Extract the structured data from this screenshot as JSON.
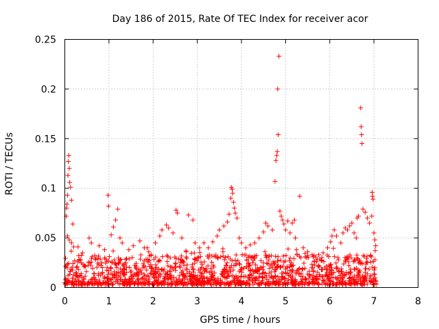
{
  "chart_data": {
    "type": "scatter",
    "title": "Day 186 of 2015, Rate Of TEC Index for receiver acor",
    "xlabel": "GPS time / hours",
    "ylabel": "ROTI / TECUs",
    "xlim": [
      0,
      8
    ],
    "ylim": [
      0,
      0.25
    ],
    "xticks": [
      0,
      1,
      2,
      3,
      4,
      5,
      6,
      7,
      8
    ],
    "xtick_labels": [
      "0",
      "1",
      "2",
      "3",
      "4",
      "5",
      "6",
      "7",
      "8"
    ],
    "yticks": [
      0,
      0.05,
      0.1,
      0.15,
      0.2,
      0.25
    ],
    "ytick_labels": [
      "0",
      "0.05",
      "0.1",
      "0.15",
      "0.2",
      "0.25"
    ],
    "grid": true,
    "marker": "+",
    "color": "#ff0000",
    "series": [
      {
        "name": "ROTI",
        "points": [
          [
            0.0,
            0.005
          ],
          [
            0.02,
            0.021
          ],
          [
            0.03,
            0.072
          ],
          [
            0.04,
            0.08
          ],
          [
            0.05,
            0.084
          ],
          [
            0.06,
            0.093
          ],
          [
            0.07,
            0.113
          ],
          [
            0.08,
            0.127
          ],
          [
            0.09,
            0.133
          ],
          [
            0.1,
            0.12
          ],
          [
            0.11,
            0.106
          ],
          [
            0.13,
            0.101
          ],
          [
            0.15,
            0.088
          ],
          [
            0.06,
            0.052
          ],
          [
            0.1,
            0.048
          ],
          [
            0.15,
            0.045
          ],
          [
            0.2,
            0.041
          ],
          [
            0.18,
            0.064
          ],
          [
            0.3,
            0.041
          ],
          [
            0.4,
            0.035
          ],
          [
            0.55,
            0.05
          ],
          [
            0.6,
            0.045
          ],
          [
            0.78,
            0.042
          ],
          [
            0.9,
            0.038
          ],
          [
            0.98,
            0.093
          ],
          [
            0.99,
            0.082
          ],
          [
            1.05,
            0.053
          ],
          [
            1.1,
            0.061
          ],
          [
            1.15,
            0.068
          ],
          [
            1.2,
            0.079
          ],
          [
            1.25,
            0.05
          ],
          [
            1.3,
            0.045
          ],
          [
            1.45,
            0.038
          ],
          [
            1.55,
            0.042
          ],
          [
            1.7,
            0.047
          ],
          [
            1.8,
            0.04
          ],
          [
            1.9,
            0.036
          ],
          [
            2.05,
            0.045
          ],
          [
            2.15,
            0.052
          ],
          [
            2.2,
            0.058
          ],
          [
            2.3,
            0.063
          ],
          [
            2.35,
            0.06
          ],
          [
            2.45,
            0.055
          ],
          [
            2.52,
            0.078
          ],
          [
            2.55,
            0.075
          ],
          [
            2.65,
            0.05
          ],
          [
            2.8,
            0.073
          ],
          [
            2.9,
            0.068
          ],
          [
            2.95,
            0.045
          ],
          [
            3.05,
            0.04
          ],
          [
            3.15,
            0.045
          ],
          [
            3.25,
            0.04
          ],
          [
            3.35,
            0.046
          ],
          [
            3.45,
            0.052
          ],
          [
            3.5,
            0.058
          ],
          [
            3.6,
            0.062
          ],
          [
            3.68,
            0.066
          ],
          [
            3.72,
            0.074
          ],
          [
            3.76,
            0.09
          ],
          [
            3.77,
            0.101
          ],
          [
            3.79,
            0.099
          ],
          [
            3.8,
            0.095
          ],
          [
            3.82,
            0.086
          ],
          [
            3.84,
            0.08
          ],
          [
            3.86,
            0.075
          ],
          [
            3.9,
            0.07
          ],
          [
            3.95,
            0.05
          ],
          [
            4.0,
            0.045
          ],
          [
            4.1,
            0.04
          ],
          [
            4.2,
            0.043
          ],
          [
            4.3,
            0.045
          ],
          [
            4.4,
            0.05
          ],
          [
            4.5,
            0.056
          ],
          [
            4.55,
            0.065
          ],
          [
            4.6,
            0.062
          ],
          [
            4.7,
            0.058
          ],
          [
            4.76,
            0.107
          ],
          [
            4.78,
            0.128
          ],
          [
            4.8,
            0.133
          ],
          [
            4.81,
            0.137
          ],
          [
            4.82,
            0.2
          ],
          [
            4.83,
            0.154
          ],
          [
            4.85,
            0.233
          ],
          [
            4.87,
            0.077
          ],
          [
            4.9,
            0.072
          ],
          [
            4.93,
            0.068
          ],
          [
            4.96,
            0.064
          ],
          [
            5.0,
            0.058
          ],
          [
            5.05,
            0.067
          ],
          [
            5.1,
            0.055
          ],
          [
            5.15,
            0.065
          ],
          [
            5.2,
            0.068
          ],
          [
            5.22,
            0.05
          ],
          [
            5.32,
            0.092
          ],
          [
            5.4,
            0.04
          ],
          [
            5.5,
            0.036
          ],
          [
            5.6,
            0.033
          ],
          [
            5.75,
            0.033
          ],
          [
            5.85,
            0.035
          ],
          [
            5.95,
            0.04
          ],
          [
            6.02,
            0.046
          ],
          [
            6.05,
            0.052
          ],
          [
            6.1,
            0.058
          ],
          [
            6.15,
            0.052
          ],
          [
            6.25,
            0.045
          ],
          [
            6.3,
            0.055
          ],
          [
            6.35,
            0.06
          ],
          [
            6.4,
            0.058
          ],
          [
            6.45,
            0.062
          ],
          [
            6.5,
            0.065
          ],
          [
            6.55,
            0.055
          ],
          [
            6.6,
            0.05
          ],
          [
            6.62,
            0.07
          ],
          [
            6.65,
            0.072
          ],
          [
            6.7,
            0.181
          ],
          [
            6.71,
            0.162
          ],
          [
            6.72,
            0.154
          ],
          [
            6.73,
            0.145
          ],
          [
            6.75,
            0.079
          ],
          [
            6.8,
            0.076
          ],
          [
            6.85,
            0.07
          ],
          [
            6.9,
            0.065
          ],
          [
            6.95,
            0.072
          ],
          [
            6.96,
            0.096
          ],
          [
            6.97,
            0.092
          ],
          [
            6.98,
            0.089
          ],
          [
            7.0,
            0.055
          ],
          [
            7.02,
            0.048
          ],
          [
            7.04,
            0.042
          ],
          [
            7.05,
            0.006
          ],
          [
            0.25,
            0.015
          ],
          [
            0.45,
            0.022
          ],
          [
            0.65,
            0.01
          ],
          [
            0.85,
            0.02
          ],
          [
            1.35,
            0.018
          ],
          [
            1.65,
            0.012
          ],
          [
            2.1,
            0.016
          ],
          [
            2.6,
            0.012
          ],
          [
            3.1,
            0.02
          ],
          [
            3.55,
            0.014
          ],
          [
            4.25,
            0.018
          ],
          [
            4.65,
            0.01
          ],
          [
            5.3,
            0.014
          ],
          [
            5.7,
            0.008
          ],
          [
            6.2,
            0.016
          ],
          [
            6.8,
            0.012
          ]
        ]
      }
    ]
  }
}
